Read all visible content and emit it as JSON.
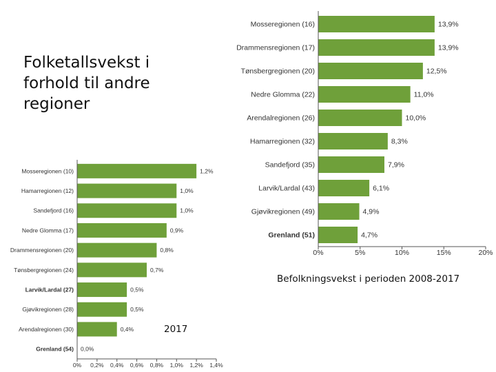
{
  "slide": {
    "title": "Folketallsvekst i forhold til andre regioner",
    "caption_main": "Befolkningsvekst i perioden 2008-2017",
    "caption_small": "2017"
  },
  "colors": {
    "bar": "#6fa03a",
    "axis": "#555555",
    "label": "#333333"
  },
  "chart_data": [
    {
      "id": "growth-2008-2017",
      "type": "bar",
      "orientation": "horizontal",
      "title": "Befolkningsvekst i perioden 2008-2017",
      "categories": [
        "Mosseregionen (16)",
        "Drammensregionen (17)",
        "Tønsbergregionen (20)",
        "Nedre Glomma (22)",
        "Arendalregionen (26)",
        "Hamarregionen (32)",
        "Sandefjord (35)",
        "Larvik/Lardal (43)",
        "Gjøvikregionen (49)",
        "Grenland (51)"
      ],
      "values": [
        13.9,
        13.9,
        12.5,
        11.0,
        10.0,
        8.3,
        7.9,
        6.1,
        4.9,
        4.7
      ],
      "value_labels": [
        "13,9%",
        "13,9%",
        "12,5%",
        "11,0%",
        "10,0%",
        "8,3%",
        "7,9%",
        "6,1%",
        "4,9%",
        "4,7%"
      ],
      "bold_categories": [
        "Grenland (51)"
      ],
      "xlim": [
        0,
        20
      ],
      "xticks": [
        0,
        5,
        10,
        15,
        20
      ],
      "xtick_labels": [
        "0%",
        "5%",
        "10%",
        "15%",
        "20%"
      ],
      "xlabel": "",
      "ylabel": ""
    },
    {
      "id": "growth-2017",
      "type": "bar",
      "orientation": "horizontal",
      "title": "2017",
      "categories": [
        "Mosseregionen (10)",
        "Hamarregionen (12)",
        "Sandefjord (16)",
        "Nedre Glomma (17)",
        "Drammensregionen (20)",
        "Tønsbergregionen (24)",
        "Larvik/Lardal (27)",
        "Gjøvikregionen (28)",
        "Arendalregionen (30)",
        "Grenland (54)"
      ],
      "values": [
        1.2,
        1.0,
        1.0,
        0.9,
        0.8,
        0.7,
        0.5,
        0.5,
        0.4,
        0.0
      ],
      "value_labels": [
        "1,2%",
        "1,0%",
        "1,0%",
        "0,9%",
        "0,8%",
        "0,7%",
        "0,5%",
        "0,5%",
        "0,4%",
        "0,0%"
      ],
      "bold_categories": [
        "Larvik/Lardal (27)",
        "Grenland (54)"
      ],
      "xlim": [
        0,
        1.4
      ],
      "xticks": [
        0,
        0.2,
        0.4,
        0.6,
        0.8,
        1.0,
        1.2,
        1.4
      ],
      "xtick_labels": [
        "0%",
        "0,2%",
        "0,4%",
        "0,6%",
        "0,8%",
        "1,0%",
        "1,2%",
        "1,4%"
      ],
      "xlabel": "",
      "ylabel": ""
    }
  ]
}
